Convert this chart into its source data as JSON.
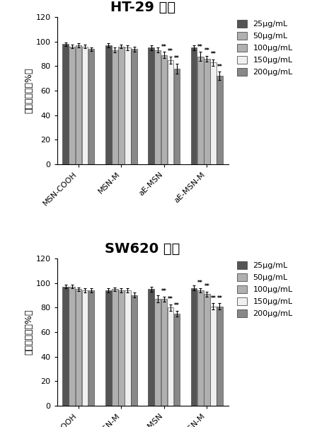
{
  "top_title": "HT-29 细胞",
  "bottom_title": "SW620 细胞",
  "ylabel": "细胞存活率（%）",
  "categories": [
    "MSN-COOH",
    "MSN-M",
    "aE-MSN",
    "aE-MSN-M"
  ],
  "legend_labels": [
    "25μg/mL",
    "50μg/mL",
    "100μg/mL",
    "150μg/mL",
    "200μg/mL"
  ],
  "bar_colors": [
    "#555555",
    "#aaaaaa",
    "#aaaaaa",
    "#e8e8e8",
    "#888888"
  ],
  "bar_hatches": [
    "",
    "",
    "",
    "",
    ""
  ],
  "top_means": [
    [
      98,
      96,
      97,
      96,
      94
    ],
    [
      97,
      93,
      96,
      95,
      94
    ],
    [
      95,
      93,
      89,
      85,
      78
    ],
    [
      95,
      88,
      86,
      83,
      72
    ]
  ],
  "top_errors": [
    [
      1.5,
      1.5,
      1.5,
      1.5,
      1.5
    ],
    [
      1.5,
      2.0,
      1.5,
      2.0,
      2.0
    ],
    [
      2.0,
      2.0,
      2.5,
      3.0,
      4.0
    ],
    [
      2.0,
      3.5,
      2.5,
      2.5,
      3.5
    ]
  ],
  "top_sig": [
    [],
    [],
    [
      2,
      3,
      4
    ],
    [
      1,
      2,
      3,
      4
    ]
  ],
  "bottom_means": [
    [
      97,
      97,
      95,
      94,
      94
    ],
    [
      94,
      95,
      94,
      94,
      90
    ],
    [
      95,
      87,
      87,
      80,
      75
    ],
    [
      96,
      94,
      91,
      81,
      81
    ]
  ],
  "bottom_errors": [
    [
      1.5,
      1.5,
      1.5,
      1.5,
      1.5
    ],
    [
      1.5,
      1.5,
      2.0,
      2.0,
      2.0
    ],
    [
      2.0,
      3.0,
      2.0,
      2.5,
      2.5
    ],
    [
      2.0,
      2.0,
      2.0,
      2.5,
      2.5
    ]
  ],
  "bottom_sig": [
    [],
    [],
    [
      2,
      3,
      4
    ],
    [
      1,
      2,
      3,
      4
    ]
  ]
}
